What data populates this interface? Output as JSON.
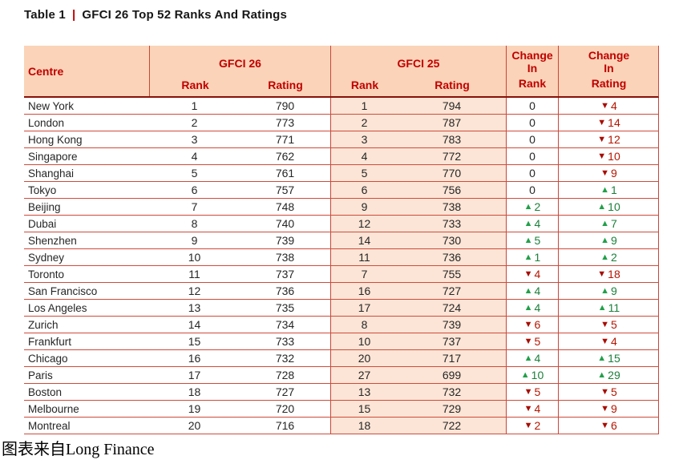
{
  "title": {
    "label": "Table 1",
    "separator": "|",
    "text": "GFCI 26 Top 52 Ranks And Ratings"
  },
  "caption": "图表来自Long Finance",
  "colors": {
    "header_bg": "#FBD3B8",
    "shaded_column_bg": "#FCE5D6",
    "header_text": "#C00000",
    "row_line": "#CE4B3B",
    "header_bottom_line": "#871109",
    "up_green": "#21A049",
    "down_red": "#A80C00"
  },
  "table": {
    "header": {
      "centre": "Centre",
      "gfci26": "GFCI 26",
      "gfci25": "GFCI 25",
      "rank": "Rank",
      "rating": "Rating",
      "change_rank_lines": [
        "Change",
        "In",
        "Rank"
      ],
      "change_rating_lines": [
        "Change",
        "In",
        "Rating"
      ]
    }
  },
  "chart_data": {
    "type": "table",
    "title": "GFCI 26 Top 52 Ranks And Ratings",
    "columns": [
      "Centre",
      "GFCI 26 Rank",
      "GFCI 26 Rating",
      "GFCI 25 Rank",
      "GFCI 25 Rating",
      "Change In Rank",
      "Change In Rating"
    ],
    "rows": [
      [
        "New York",
        1,
        790,
        1,
        794,
        0,
        -4
      ],
      [
        "London",
        2,
        773,
        2,
        787,
        0,
        -14
      ],
      [
        "Hong Kong",
        3,
        771,
        3,
        783,
        0,
        -12
      ],
      [
        "Singapore",
        4,
        762,
        4,
        772,
        0,
        -10
      ],
      [
        "Shanghai",
        5,
        761,
        5,
        770,
        0,
        -9
      ],
      [
        "Tokyo",
        6,
        757,
        6,
        756,
        0,
        1
      ],
      [
        "Beijing",
        7,
        748,
        9,
        738,
        2,
        10
      ],
      [
        "Dubai",
        8,
        740,
        12,
        733,
        4,
        7
      ],
      [
        "Shenzhen",
        9,
        739,
        14,
        730,
        5,
        9
      ],
      [
        "Sydney",
        10,
        738,
        11,
        736,
        1,
        2
      ],
      [
        "Toronto",
        11,
        737,
        7,
        755,
        -4,
        -18
      ],
      [
        "San Francisco",
        12,
        736,
        16,
        727,
        4,
        9
      ],
      [
        "Los Angeles",
        13,
        735,
        17,
        724,
        4,
        11
      ],
      [
        "Zurich",
        14,
        734,
        8,
        739,
        -6,
        -5
      ],
      [
        "Frankfurt",
        15,
        733,
        10,
        737,
        -5,
        -4
      ],
      [
        "Chicago",
        16,
        732,
        20,
        717,
        4,
        15
      ],
      [
        "Paris",
        17,
        728,
        27,
        699,
        10,
        29
      ],
      [
        "Boston",
        18,
        727,
        13,
        732,
        -5,
        -5
      ],
      [
        "Melbourne",
        19,
        720,
        15,
        729,
        -4,
        -9
      ],
      [
        "Montreal",
        20,
        716,
        18,
        722,
        -2,
        -6
      ]
    ]
  }
}
